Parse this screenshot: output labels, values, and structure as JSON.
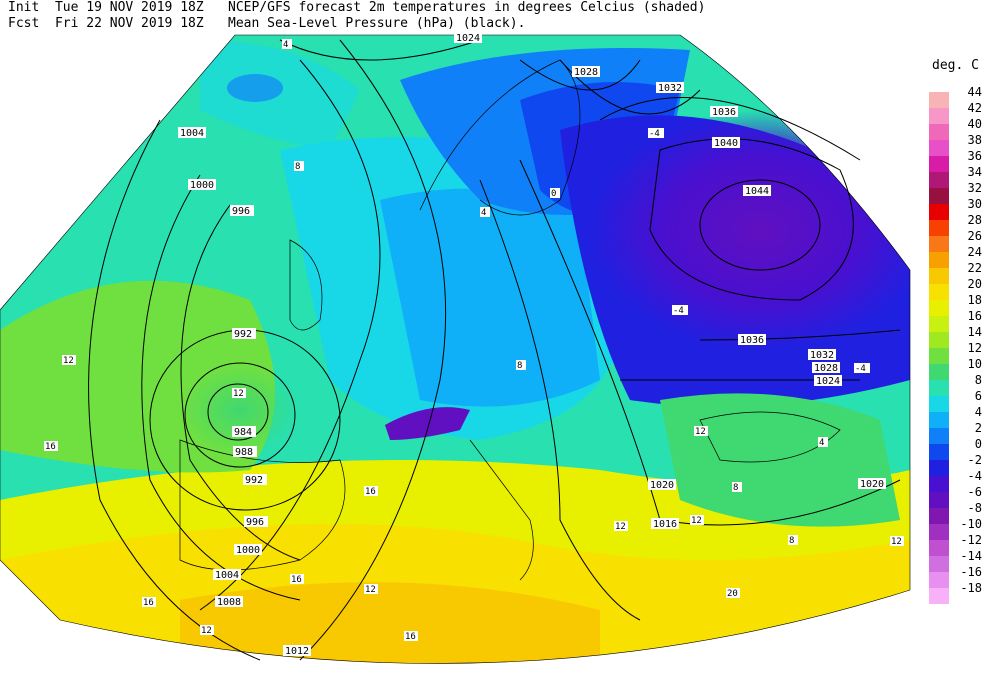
{
  "header": {
    "init_label": "Init",
    "init_value": "Tue 19 NOV 2019 18Z",
    "fcst_label": "Fcst",
    "fcst_value": "Fri 22 NOV 2019 18Z",
    "title_line1": "NCEP/GFS forecast 2m temperatures in degrees Celcius (shaded)",
    "title_line2": "Mean Sea-Level Pressure (hPa) (black)."
  },
  "colorbar": {
    "unit": "deg. C",
    "levels": [
      "44",
      "42",
      "40",
      "38",
      "36",
      "34",
      "32",
      "30",
      "28",
      "26",
      "24",
      "22",
      "20",
      "18",
      "16",
      "14",
      "12",
      "10",
      "8",
      "6",
      "4",
      "2",
      "0",
      "-2",
      "-4",
      "-6",
      "-8",
      "-10",
      "-12",
      "-14",
      "-16",
      "-18"
    ],
    "colors": [
      "#f8b4b4",
      "#f896c8",
      "#f068b8",
      "#e850c8",
      "#d81ca8",
      "#b01878",
      "#981040",
      "#e80000",
      "#f84000",
      "#f87818",
      "#f8a000",
      "#f8c800",
      "#f8e000",
      "#e8f000",
      "#c8f010",
      "#a0e820",
      "#70e040",
      "#40d870",
      "#28e0b0",
      "#18d8e8",
      "#10b0f8",
      "#1080f8",
      "#1048f0",
      "#2020e0",
      "#4810d0",
      "#6010c0",
      "#8018b0",
      "#a030c0",
      "#c050d0",
      "#d070e0",
      "#e890f0",
      "#f8b0f8"
    ]
  },
  "isobar_labels": [
    "1024",
    "1028",
    "1032",
    "1036",
    "1040",
    "1044",
    "1004",
    "1000",
    "996",
    "992",
    "984",
    "988",
    "992",
    "996",
    "1000",
    "1004",
    "1008",
    "1012",
    "1036",
    "1032",
    "1028",
    "1024",
    "1020",
    "1016",
    "1020"
  ],
  "temperature_labels": [
    "4",
    "-4",
    "8",
    "0",
    "-4",
    "4",
    "12",
    "12",
    "16",
    "8",
    "16",
    "12",
    "16",
    "12",
    "16",
    "20",
    "16",
    "12",
    "12",
    "8",
    "12",
    "12",
    "8",
    "-4",
    "4"
  ]
}
